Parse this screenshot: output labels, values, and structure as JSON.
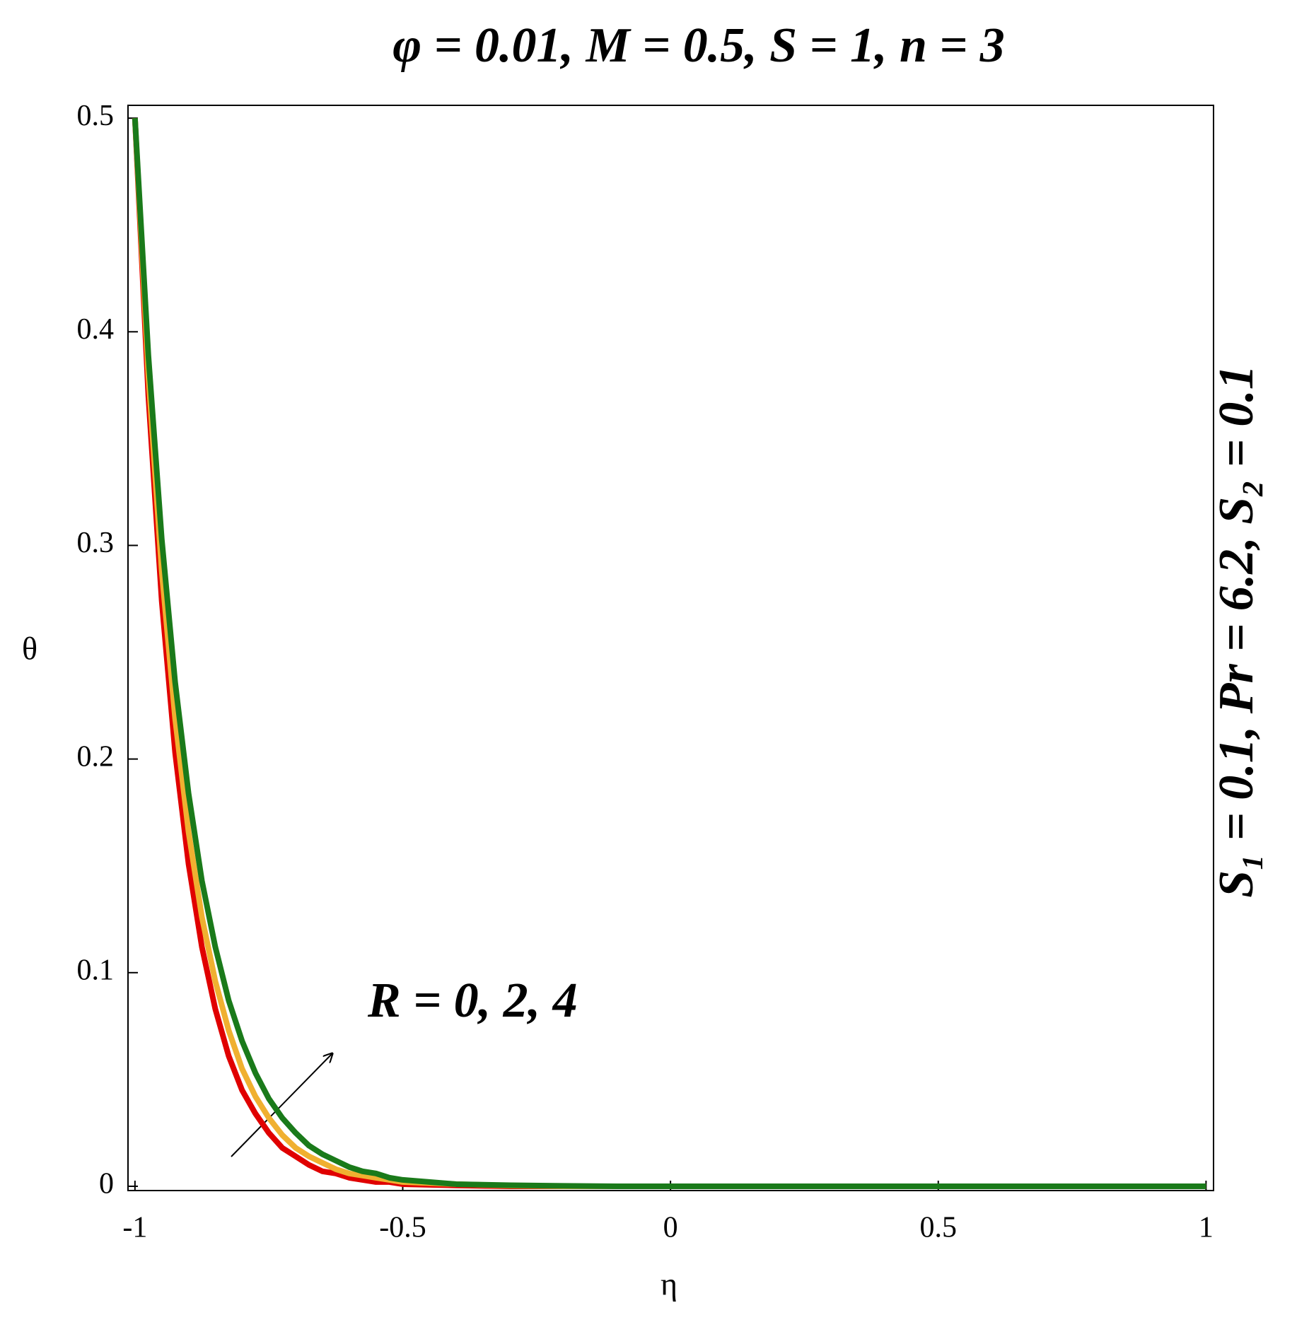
{
  "chart_data": {
    "type": "line",
    "title": "φ = 0.01, M = 0.5, S = 1, n = 3",
    "side_label": "S₁ = 0.1, Pr = 6.2, S₂ = 0.1",
    "annotation": "R = 0, 2, 4",
    "x_label": "η",
    "y_label": "θ",
    "x": [
      -1,
      -0.975,
      -0.95,
      -0.925,
      -0.9,
      -0.875,
      -0.85,
      -0.825,
      -0.8,
      -0.775,
      -0.75,
      -0.725,
      -0.7,
      -0.675,
      -0.65,
      -0.625,
      -0.6,
      -0.575,
      -0.55,
      -0.525,
      -0.5,
      -0.4,
      -0.3,
      -0.2,
      -0.1,
      0,
      0.25,
      0.5,
      0.75,
      1
    ],
    "series": [
      {
        "color": "#e00000",
        "values": [
          0.5,
          0.37,
          0.274,
          0.203,
          0.151,
          0.112,
          0.083,
          0.061,
          0.045,
          0.034,
          0.025,
          0.018,
          0.014,
          0.01,
          0.007,
          0.006,
          0.004,
          0.003,
          0.002,
          0.002,
          0.001,
          0.0004,
          0,
          0,
          0,
          0,
          0,
          0,
          0,
          0
        ]
      },
      {
        "color": "#f0b030",
        "values": [
          0.5,
          0.38,
          0.288,
          0.219,
          0.166,
          0.126,
          0.096,
          0.073,
          0.055,
          0.042,
          0.032,
          0.024,
          0.018,
          0.014,
          0.011,
          0.008,
          0.006,
          0.005,
          0.004,
          0.003,
          0.002,
          0.001,
          0.0003,
          0,
          0,
          0,
          0,
          0,
          0,
          0
        ]
      },
      {
        "color": "#1a7a1a",
        "values": [
          0.5,
          0.389,
          0.303,
          0.236,
          0.184,
          0.143,
          0.112,
          0.087,
          0.068,
          0.053,
          0.041,
          0.032,
          0.025,
          0.019,
          0.015,
          0.012,
          0.009,
          0.007,
          0.006,
          0.004,
          0.003,
          0.001,
          0.0005,
          0.0002,
          0,
          0,
          0,
          0,
          0,
          0
        ]
      }
    ],
    "xlim": [
      -1.013,
      1.014
    ],
    "ylim": [
      -0.002,
      0.506
    ],
    "xticks": [
      -1,
      -0.5,
      0,
      0.5,
      1
    ],
    "yticks": [
      0,
      0.1,
      0.2,
      0.3,
      0.4,
      0.5
    ]
  }
}
